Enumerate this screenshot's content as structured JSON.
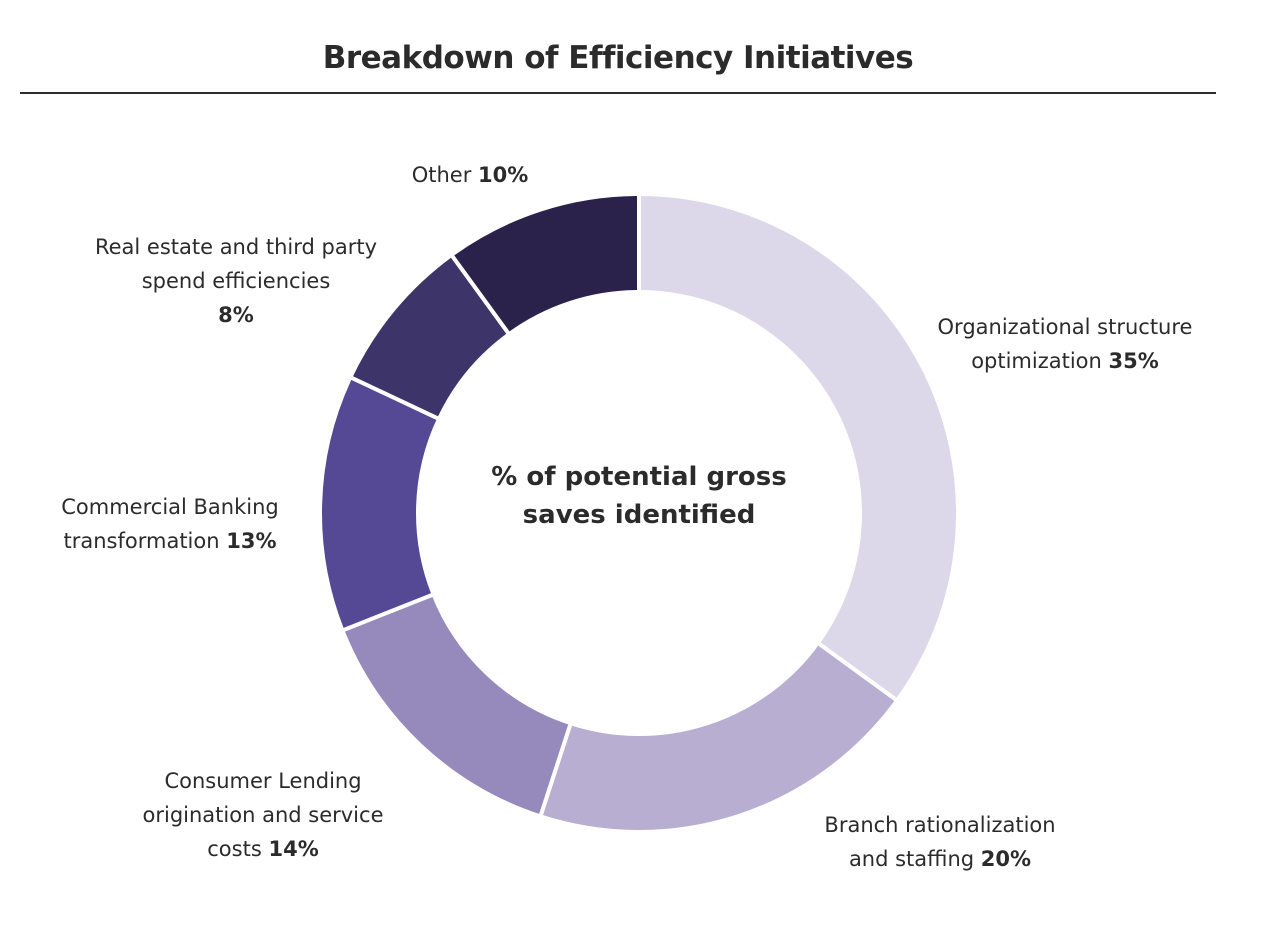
{
  "chart_data": {
    "type": "pie",
    "variant": "donut",
    "title": "Breakdown of Efficiency Initiatives",
    "center_label": "% of potential gross saves identified",
    "unit": "%",
    "slices": [
      {
        "label": "Organizational structure optimization",
        "value": 35,
        "value_label": "35%",
        "color": "#DCD8EA"
      },
      {
        "label": "Branch rationalization and staffing",
        "value": 20,
        "value_label": "20%",
        "color": "#B7AED1"
      },
      {
        "label": "Consumer Lending origination and service costs",
        "value": 14,
        "value_label": "14%",
        "color": "#968ABD"
      },
      {
        "label": "Commercial Banking transformation",
        "value": 13,
        "value_label": "13%",
        "color": "#554895"
      },
      {
        "label": "Real estate and third party spend efficiencies",
        "value": 8,
        "value_label": "8%",
        "color": "#3D3469"
      },
      {
        "label": "Other",
        "value": 10,
        "value_label": "10%",
        "color": "#2A224A"
      }
    ],
    "start_angle": "12 o'clock",
    "direction": "clockwise",
    "legend": "none (direct labels)"
  }
}
